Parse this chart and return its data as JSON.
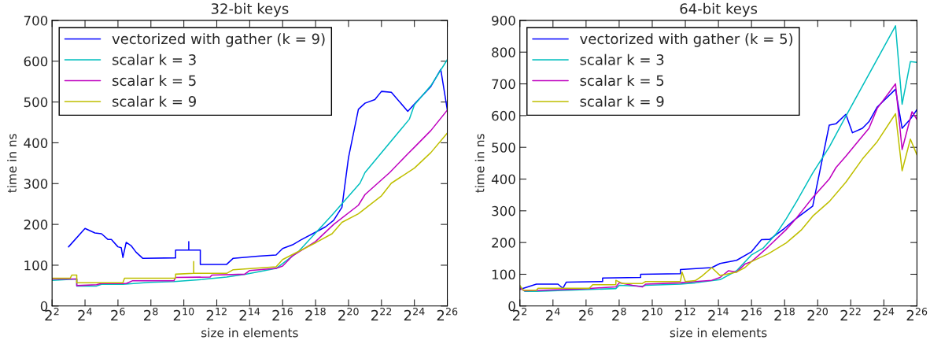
{
  "chart_data": [
    {
      "type": "line",
      "title": "32-bit keys",
      "xlabel": "size in elements",
      "ylabel": "time in ns",
      "legend": "top left",
      "grid": false,
      "marker": "none",
      "line_style": "solid",
      "log": "x",
      "xlim": [
        4,
        67108864
      ],
      "xticks": [
        {
          "value": 4,
          "label": "2$^{2}$"
        },
        {
          "value": 16,
          "label": "2$^{4}$"
        },
        {
          "value": 64,
          "label": "2$^{6}$"
        },
        {
          "value": 256,
          "label": "2$^{8}$"
        },
        {
          "value": 1024,
          "label": "2$^{10}$"
        },
        {
          "value": 4096,
          "label": "2$^{12}$"
        },
        {
          "value": 16384,
          "label": "2$^{14}$"
        },
        {
          "value": 65536,
          "label": "2$^{16}$"
        },
        {
          "value": 262144,
          "label": "2$^{18}$"
        },
        {
          "value": 1048576,
          "label": "2$^{20}$"
        },
        {
          "value": 4194304,
          "label": "2$^{22}$"
        },
        {
          "value": 16777216,
          "label": "2$^{24}$"
        },
        {
          "value": 67108864,
          "label": "2$^{26}$"
        }
      ],
      "ylim": [
        0,
        700
      ],
      "yticks": [
        0,
        100,
        200,
        300,
        400,
        500,
        600,
        700
      ],
      "series": [
        {
          "name": "vectorized with gather (k = 9)",
          "color": "#0000ff",
          "x": [
            8,
            16,
            24.3,
            32,
            42.2,
            48.5,
            64,
            73.5,
            78.8,
            90.5,
            111,
            137,
            181,
            724,
            724,
            1260,
            1260,
            1260,
            2048,
            2048,
            6210,
            8192,
            23200,
            49700,
            65536,
            99400,
            141000,
            262144,
            397000,
            562000,
            795000,
            1048576,
            1590000,
            2097152,
            3180000,
            4194304,
            6360000,
            12700000,
            16777216,
            33554432,
            50900000,
            67108864
          ],
          "values": [
            145,
            190,
            179,
            177,
            163,
            163,
            145,
            143,
            119,
            156,
            148,
            132,
            117,
            118,
            137,
            137,
            158,
            137,
            137,
            102,
            102,
            117,
            122,
            125,
            141,
            150,
            162,
            181,
            194,
            210,
            242,
            364,
            482,
            497,
            506,
            526,
            524,
            477,
            495,
            538,
            580,
            480
          ]
        },
        {
          "name": "scalar k = 3",
          "color": "#00bfbf",
          "x": [
            4,
            11.3,
            11.3,
            26,
            32,
            78.8,
            239,
            676,
            2200,
            6210,
            14300,
            49700,
            65536,
            131072,
            524288,
            1700000,
            2097152,
            13600000,
            16777216,
            33554432,
            67108864
          ],
          "values": [
            63,
            66,
            49,
            49,
            53,
            53,
            58,
            60,
            65,
            71,
            78,
            92,
            104,
            135,
            223,
            301,
            327,
            458,
            493,
            540,
            604
          ]
        },
        {
          "name": "scalar k = 5",
          "color": "#bf00bf",
          "x": [
            4,
            11.3,
            11.3,
            26,
            32,
            90.5,
            119,
            676,
            724,
            3100,
            3330,
            13300,
            16384,
            49700,
            65536,
            99400,
            262144,
            562000,
            1590000,
            2097152,
            5930000,
            12700000,
            16777216,
            33554432,
            67108864
          ],
          "values": [
            66,
            66,
            50,
            52,
            55,
            55,
            62,
            62,
            70,
            71,
            76,
            78,
            87,
            92,
            98,
            123,
            158,
            200,
            247,
            273,
            327,
            373,
            389,
            430,
            480
          ]
        },
        {
          "name": "scalar k = 9",
          "color": "#bfbf00",
          "x": [
            4,
            8.57,
            9.19,
            11.3,
            11.3,
            78.8,
            84.4,
            724,
            724,
            1550,
            1550,
            1550,
            6210,
            8192,
            49700,
            65536,
            262144,
            524288,
            795000,
            1590000,
            4194304,
            6360000,
            16777216,
            33554432,
            67108864
          ],
          "values": [
            68,
            68,
            76,
            76,
            57,
            57,
            68,
            68,
            78,
            80,
            109,
            80,
            80,
            89,
            96,
            114,
            155,
            177,
            205,
            226,
            270,
            301,
            338,
            376,
            424
          ]
        }
      ]
    },
    {
      "type": "line",
      "title": "64-bit keys",
      "xlabel": "size in elements",
      "ylabel": "time in ns",
      "legend": "top left",
      "grid": false,
      "marker": "none",
      "line_style": "solid",
      "log": "x",
      "xlim": [
        4,
        67108864
      ],
      "xticks": [
        {
          "value": 4,
          "label": "2$^{2}$"
        },
        {
          "value": 16,
          "label": "2$^{4}$"
        },
        {
          "value": 64,
          "label": "2$^{6}$"
        },
        {
          "value": 256,
          "label": "2$^{8}$"
        },
        {
          "value": 1024,
          "label": "2$^{10}$"
        },
        {
          "value": 4096,
          "label": "2$^{12}$"
        },
        {
          "value": 16384,
          "label": "2$^{14}$"
        },
        {
          "value": 65536,
          "label": "2$^{16}$"
        },
        {
          "value": 262144,
          "label": "2$^{18}$"
        },
        {
          "value": 1048576,
          "label": "2$^{20}$"
        },
        {
          "value": 4194304,
          "label": "2$^{22}$"
        },
        {
          "value": 16777216,
          "label": "2$^{24}$"
        },
        {
          "value": 67108864,
          "label": "2$^{26}$"
        }
      ],
      "ylim": [
        0,
        900
      ],
      "yticks": [
        0,
        100,
        200,
        300,
        400,
        500,
        600,
        700,
        800,
        900
      ],
      "series": [
        {
          "name": "vectorized with gather (k = 5)",
          "color": "#0000ff",
          "x": [
            4,
            8,
            19.7,
            24.3,
            27.9,
            128,
            128,
            630,
            630,
            3330,
            3330,
            12400,
            17600,
            35100,
            65536,
            99400,
            141000,
            262144,
            426000,
            851000,
            1700000,
            2250000,
            3410000,
            4500000,
            6820000,
            8990000,
            12700000,
            27300000,
            36000000,
            50900000,
            67108864
          ],
          "values": [
            52,
            69,
            69,
            56,
            75,
            77,
            88,
            90,
            100,
            102,
            115,
            121,
            134,
            144,
            171,
            209,
            210,
            245,
            276,
            315,
            570,
            574,
            604,
            546,
            560,
            581,
            627,
            683,
            560,
            589,
            619
          ]
        },
        {
          "name": "scalar k = 3",
          "color": "#00bfbf",
          "x": [
            4,
            4.92,
            8,
            223,
            256,
            676,
            776,
            3330,
            6210,
            17600,
            35100,
            65536,
            106000,
            185000,
            281000,
            426000,
            851000,
            1700000,
            3410000,
            12700000,
            27300000,
            36000000,
            50900000,
            67108864
          ],
          "values": [
            60,
            46,
            46,
            55,
            65,
            62,
            65,
            69,
            73,
            83,
            111,
            161,
            182,
            228,
            275,
            327,
            419,
            501,
            598,
            778,
            883,
            636,
            770,
            768
          ]
        },
        {
          "name": "scalar k = 5",
          "color": "#bf00bf",
          "x": [
            4,
            4.92,
            59.7,
            128,
            223,
            256,
            446,
            676,
            776,
            3330,
            6210,
            12400,
            17600,
            24800,
            35100,
            49700,
            65536,
            131072,
            281000,
            426000,
            851000,
            1700000,
            2250000,
            3410000,
            5160000,
            8990000,
            12700000,
            27300000,
            36000000,
            54500000,
            67108864
          ],
          "values": [
            56,
            48,
            54,
            58,
            60,
            73,
            65,
            60,
            69,
            73,
            77,
            81,
            90,
            111,
            107,
            132,
            140,
            186,
            241,
            276,
            342,
            400,
            436,
            472,
            510,
            560,
            623,
            700,
            493,
            612,
            588
          ]
        },
        {
          "name": "scalar k = 9",
          "color": "#bfbf00",
          "x": [
            4,
            4.59,
            8,
            8.57,
            73.5,
            84.4,
            223,
            223,
            294,
            676,
            776,
            3330,
            3570,
            4096,
            6210,
            8192,
            12400,
            17600,
            35100,
            49700,
            65536,
            131072,
            281000,
            524288,
            851000,
            1700000,
            3410000,
            6820000,
            12700000,
            27300000,
            36000000,
            50900000,
            67108864
          ],
          "values": [
            65,
            50,
            50,
            56,
            56,
            67,
            67,
            81,
            71,
            71,
            77,
            77,
            107,
            77,
            80,
            94,
            121,
            96,
            107,
            121,
            140,
            164,
            199,
            239,
            283,
            329,
            390,
            463,
            518,
            606,
            426,
            526,
            476
          ]
        }
      ]
    }
  ]
}
